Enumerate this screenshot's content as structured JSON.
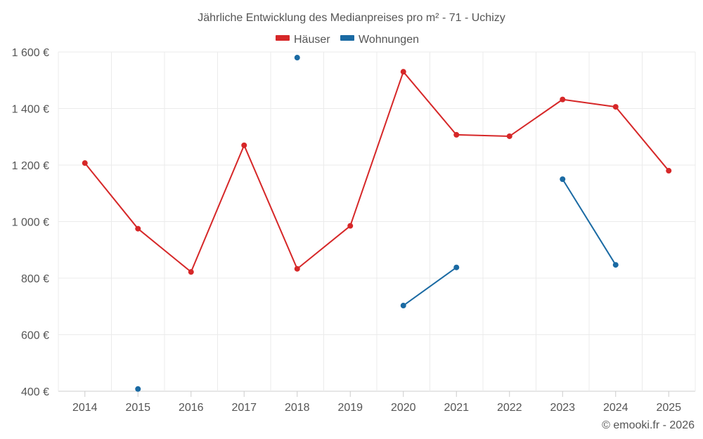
{
  "chart_data": {
    "type": "line",
    "title": "Jährliche Entwicklung des Medianpreises pro m² - 71 - Uchizy",
    "xlabel": "",
    "ylabel": "",
    "categories": [
      "2014",
      "2015",
      "2016",
      "2017",
      "2018",
      "2019",
      "2020",
      "2021",
      "2022",
      "2023",
      "2024",
      "2025"
    ],
    "ylim": [
      400,
      1600
    ],
    "yticks": [
      {
        "value": 400,
        "label": "400 €"
      },
      {
        "value": 600,
        "label": "600 €"
      },
      {
        "value": 800,
        "label": "800 €"
      },
      {
        "value": 1000,
        "label": "1 000 €"
      },
      {
        "value": 1200,
        "label": "1 200 €"
      },
      {
        "value": 1400,
        "label": "1 400 €"
      },
      {
        "value": 1600,
        "label": "1 600 €"
      }
    ],
    "grid": true,
    "legend_position": "top-center",
    "series": [
      {
        "name": "Häuser",
        "color": "#d62728",
        "values": [
          1207,
          975,
          822,
          1270,
          833,
          985,
          1530,
          1307,
          1302,
          1432,
          1406,
          1180
        ]
      },
      {
        "name": "Wohnungen",
        "color": "#1a6aa3",
        "values": [
          null,
          408,
          null,
          null,
          1580,
          null,
          703,
          838,
          null,
          1150,
          847,
          null
        ]
      }
    ],
    "credit": "© emooki.fr - 2026"
  }
}
